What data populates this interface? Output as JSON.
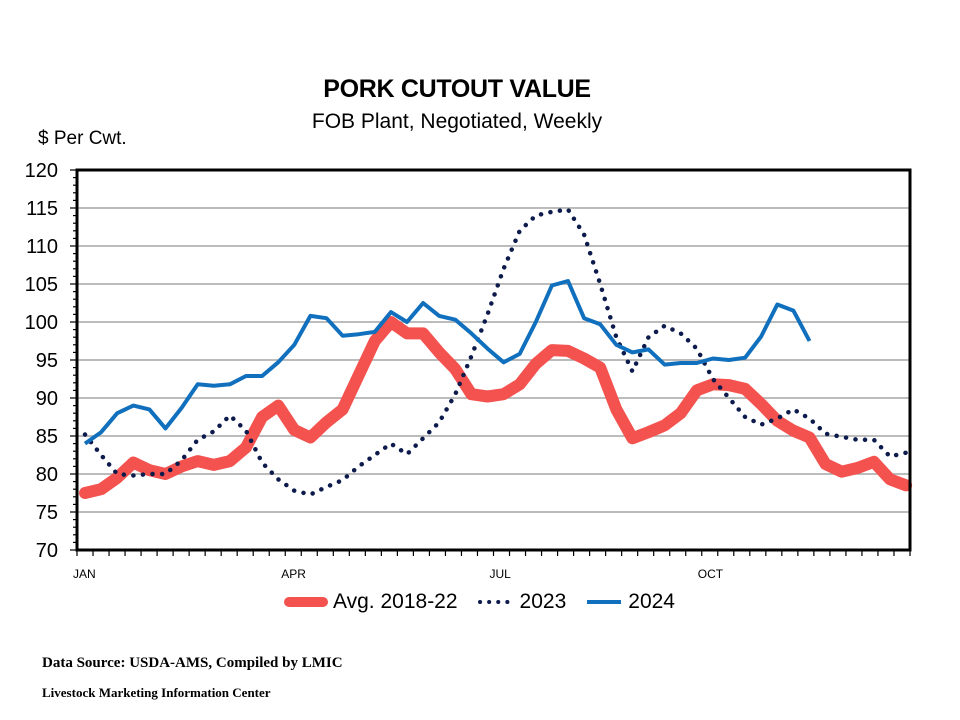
{
  "chart_data": {
    "type": "line",
    "title": "PORK CUTOUT VALUE",
    "subtitle": "FOB Plant, Negotiated, Weekly",
    "ylabel": "$ Per Cwt.",
    "xlabel": "",
    "ylim": [
      70,
      120
    ],
    "yticks": [
      70,
      75,
      80,
      85,
      90,
      95,
      100,
      105,
      110,
      115,
      120
    ],
    "xlim": [
      1,
      53
    ],
    "x_tick_count": 53,
    "xtick_labels": [
      {
        "week": 1,
        "label": "JAN"
      },
      {
        "week": 14,
        "label": "APR"
      },
      {
        "week": 27,
        "label": "JUL"
      },
      {
        "week": 40,
        "label": "OCT"
      }
    ],
    "grid": true,
    "legend_position": "bottom",
    "series": [
      {
        "name": "Avg. 2018-22",
        "color": "#F4524F",
        "style": "thick-solid",
        "values": [
          77.5,
          78,
          79.5,
          81.5,
          80.5,
          80,
          81,
          81.7,
          81.2,
          81.7,
          83.5,
          87.5,
          89,
          85.8,
          84.8,
          86.8,
          88.5,
          93,
          97.5,
          100,
          98.5,
          98.5,
          96,
          93.8,
          90.5,
          90.2,
          90.5,
          91.8,
          94.5,
          96.3,
          96.2,
          95.2,
          94,
          88.5,
          84.7,
          85.5,
          86.4,
          88,
          91,
          91.8,
          91.7,
          91.2,
          89.2,
          87,
          85.7,
          84.8,
          81.3,
          80.3,
          80.8,
          81.6,
          79.3,
          78.5
        ]
      },
      {
        "name": "2023",
        "color": "#0D1B4C",
        "style": "dotted",
        "values": [
          85.2,
          82.5,
          80,
          79.8,
          80,
          80,
          81.8,
          84.5,
          85.6,
          87.7,
          85.7,
          81.5,
          79.3,
          77.8,
          77.3,
          78.3,
          79.2,
          81,
          82.5,
          84,
          82.6,
          84.7,
          86.8,
          90.5,
          95.5,
          101,
          107,
          112,
          114,
          114.5,
          114.8,
          111.5,
          105,
          98,
          93.5,
          98,
          99.5,
          98.5,
          96.5,
          92.5,
          90,
          87.5,
          86.5,
          87.3,
          88.5,
          87.3,
          85.3,
          84.9,
          84.5,
          84.5,
          82.3,
          82.8
        ]
      },
      {
        "name": "2024",
        "color": "#1170BD",
        "style": "solid",
        "values": [
          84,
          85.5,
          88,
          89,
          88.5,
          86,
          88.7,
          91.8,
          91.6,
          91.8,
          92.9,
          92.9,
          94.7,
          97,
          100.8,
          100.5,
          98.2,
          98.4,
          98.7,
          101.3,
          100,
          102.5,
          100.8,
          100.3,
          98.5,
          96.5,
          94.7,
          95.8,
          100,
          104.8,
          105.4,
          100.5,
          99.7,
          97,
          96,
          96.4,
          94.4,
          94.6,
          94.6,
          95.2,
          95,
          95.3,
          98.1,
          102.3,
          101.5,
          97.5
        ]
      }
    ]
  },
  "footer": {
    "source": "Data Source:  USDA-AMS, Compiled by LMIC",
    "org": "Livestock Marketing Information Center"
  }
}
